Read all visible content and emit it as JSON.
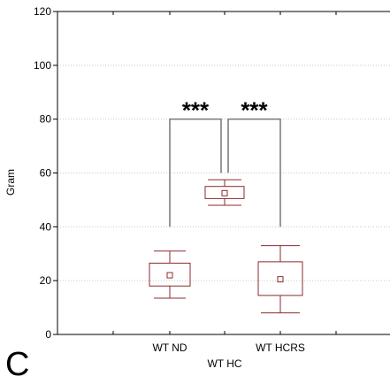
{
  "panel_label": "C",
  "chart_data": {
    "type": "box",
    "ylabel": "Gram",
    "xlabel": "WT HC",
    "ylim": [
      0,
      120
    ],
    "yticks": [
      0,
      20,
      40,
      60,
      80,
      100,
      120
    ],
    "grid": "horizontal dotted",
    "categories": [
      "WT ND",
      "WT HC",
      "WT HCRS"
    ],
    "category_labels_shown": [
      "WT ND",
      "WT HCRS"
    ],
    "boxes": [
      {
        "category": "WT ND",
        "mean": 22,
        "box_low": 18,
        "box_high": 26.5,
        "whisker_low": 13.5,
        "whisker_high": 31
      },
      {
        "category": "WT HC",
        "mean": 52.5,
        "box_low": 50.5,
        "box_high": 55,
        "whisker_low": 48,
        "whisker_high": 57.5
      },
      {
        "category": "WT HCRS",
        "mean": 20.5,
        "box_low": 14.5,
        "box_high": 27,
        "whisker_low": 8,
        "whisker_high": 33
      }
    ],
    "significance": [
      {
        "from": "WT ND",
        "to": "WT HC",
        "label": "***",
        "y": 80
      },
      {
        "from": "WT HC",
        "to": "WT HCRS",
        "label": "***",
        "y": 80
      }
    ],
    "colors": {
      "box": "#8b2b2b",
      "bracket": "#777777",
      "grid": "#c8c8c8",
      "axis": "#000000"
    }
  }
}
